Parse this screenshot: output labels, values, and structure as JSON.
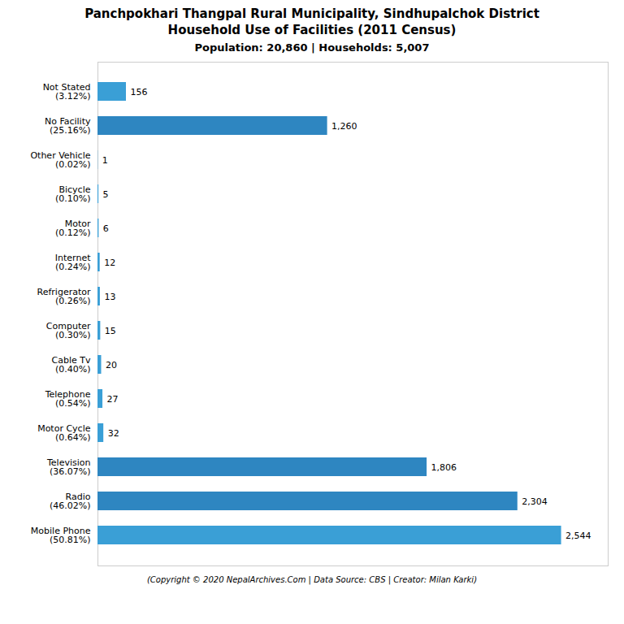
{
  "chart_data": {
    "type": "bar",
    "orientation": "horizontal",
    "title": "Panchpokhari Thangpal Rural Municipality, Sindhupalchok District\nHousehold Use of Facilities (2011 Census)",
    "subtitle": "Population: 20,860 | Households: 5,007",
    "caption": "(Copyright © 2020 NepalArchives.Com | Data Source: CBS | Creator: Milan Karki)",
    "categories": [
      "Not Stated\n(3.12%)",
      "No Facility\n(25.16%)",
      "Other Vehicle\n(0.02%)",
      "Bicycle\n(0.10%)",
      "Motor\n(0.12%)",
      "Internet\n(0.24%)",
      "Refrigerator\n(0.26%)",
      "Computer\n(0.30%)",
      "Cable Tv\n(0.40%)",
      "Telephone\n(0.54%)",
      "Motor Cycle\n(0.64%)",
      "Television\n(36.07%)",
      "Radio\n(46.02%)",
      "Mobile Phone\n(50.81%)"
    ],
    "values": [
      156,
      1260,
      1,
      5,
      6,
      12,
      13,
      15,
      20,
      27,
      32,
      1806,
      2304,
      2544
    ],
    "value_labels": [
      "156",
      "1,260",
      "1",
      "5",
      "6",
      "12",
      "13",
      "15",
      "20",
      "27",
      "32",
      "1,806",
      "2,304",
      "2,544"
    ],
    "colors": [
      "#3a9fd6",
      "#2e86c1",
      "#3a9fd6",
      "#3a9fd6",
      "#3a9fd6",
      "#3a9fd6",
      "#3a9fd6",
      "#3a9fd6",
      "#3a9fd6",
      "#3a9fd6",
      "#3a9fd6",
      "#2e86c1",
      "#2e86c1",
      "#3a9fd6"
    ],
    "xlim": [
      0,
      2800
    ],
    "data_labels": true,
    "tick_labels": "y",
    "grid": false
  }
}
